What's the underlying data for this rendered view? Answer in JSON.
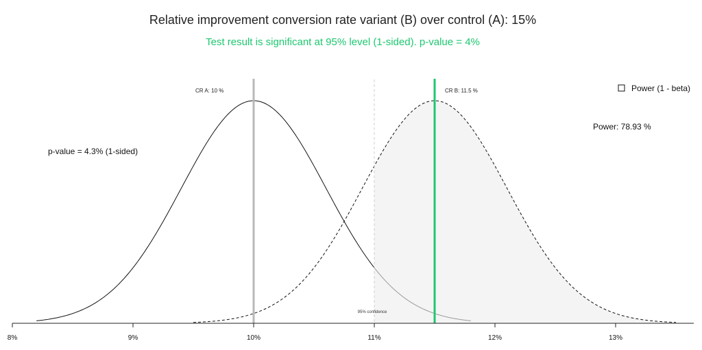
{
  "title": "Relative improvement conversion rate variant (B) over control (A): 15%",
  "subtitle": "Test result is significant at 95% level (1-sided). p-value = 4%",
  "colors": {
    "accent": "#1ec770",
    "control_line": "#b8b8b8",
    "confidence_line": "#cfcfcf",
    "power_fill": "#f4f4f4",
    "curve": "#111111",
    "tail": "#9a9a9a"
  },
  "chart_data": {
    "type": "line",
    "xlim": [
      8,
      13.6
    ],
    "x_ticks": [
      8,
      9,
      10,
      11,
      12,
      13
    ],
    "x_tick_labels": [
      "8%",
      "9%",
      "10%",
      "11%",
      "12%",
      "13%"
    ],
    "series": [
      {
        "name": "CR A",
        "mean": 10,
        "sd": 0.6,
        "range": [
          8.2,
          11.8
        ],
        "style": "solid"
      },
      {
        "name": "CR B",
        "mean": 11.5,
        "sd": 0.6,
        "range": [
          9.5,
          13.5
        ],
        "style": "dashed"
      }
    ],
    "markers": {
      "cr_a": {
        "x": 10,
        "label": "CR A: 10 %"
      },
      "cr_b": {
        "x": 11.5,
        "label": "CR B: 11.5 %"
      },
      "confidence": {
        "x": 11,
        "label": "95% confidence"
      }
    },
    "annotations": {
      "p_value": "p-value = 4.3% (1-sided)",
      "power": "Power:  78.93 %"
    },
    "legend": {
      "label": "Power (1 - beta)",
      "position": "top-right"
    }
  }
}
